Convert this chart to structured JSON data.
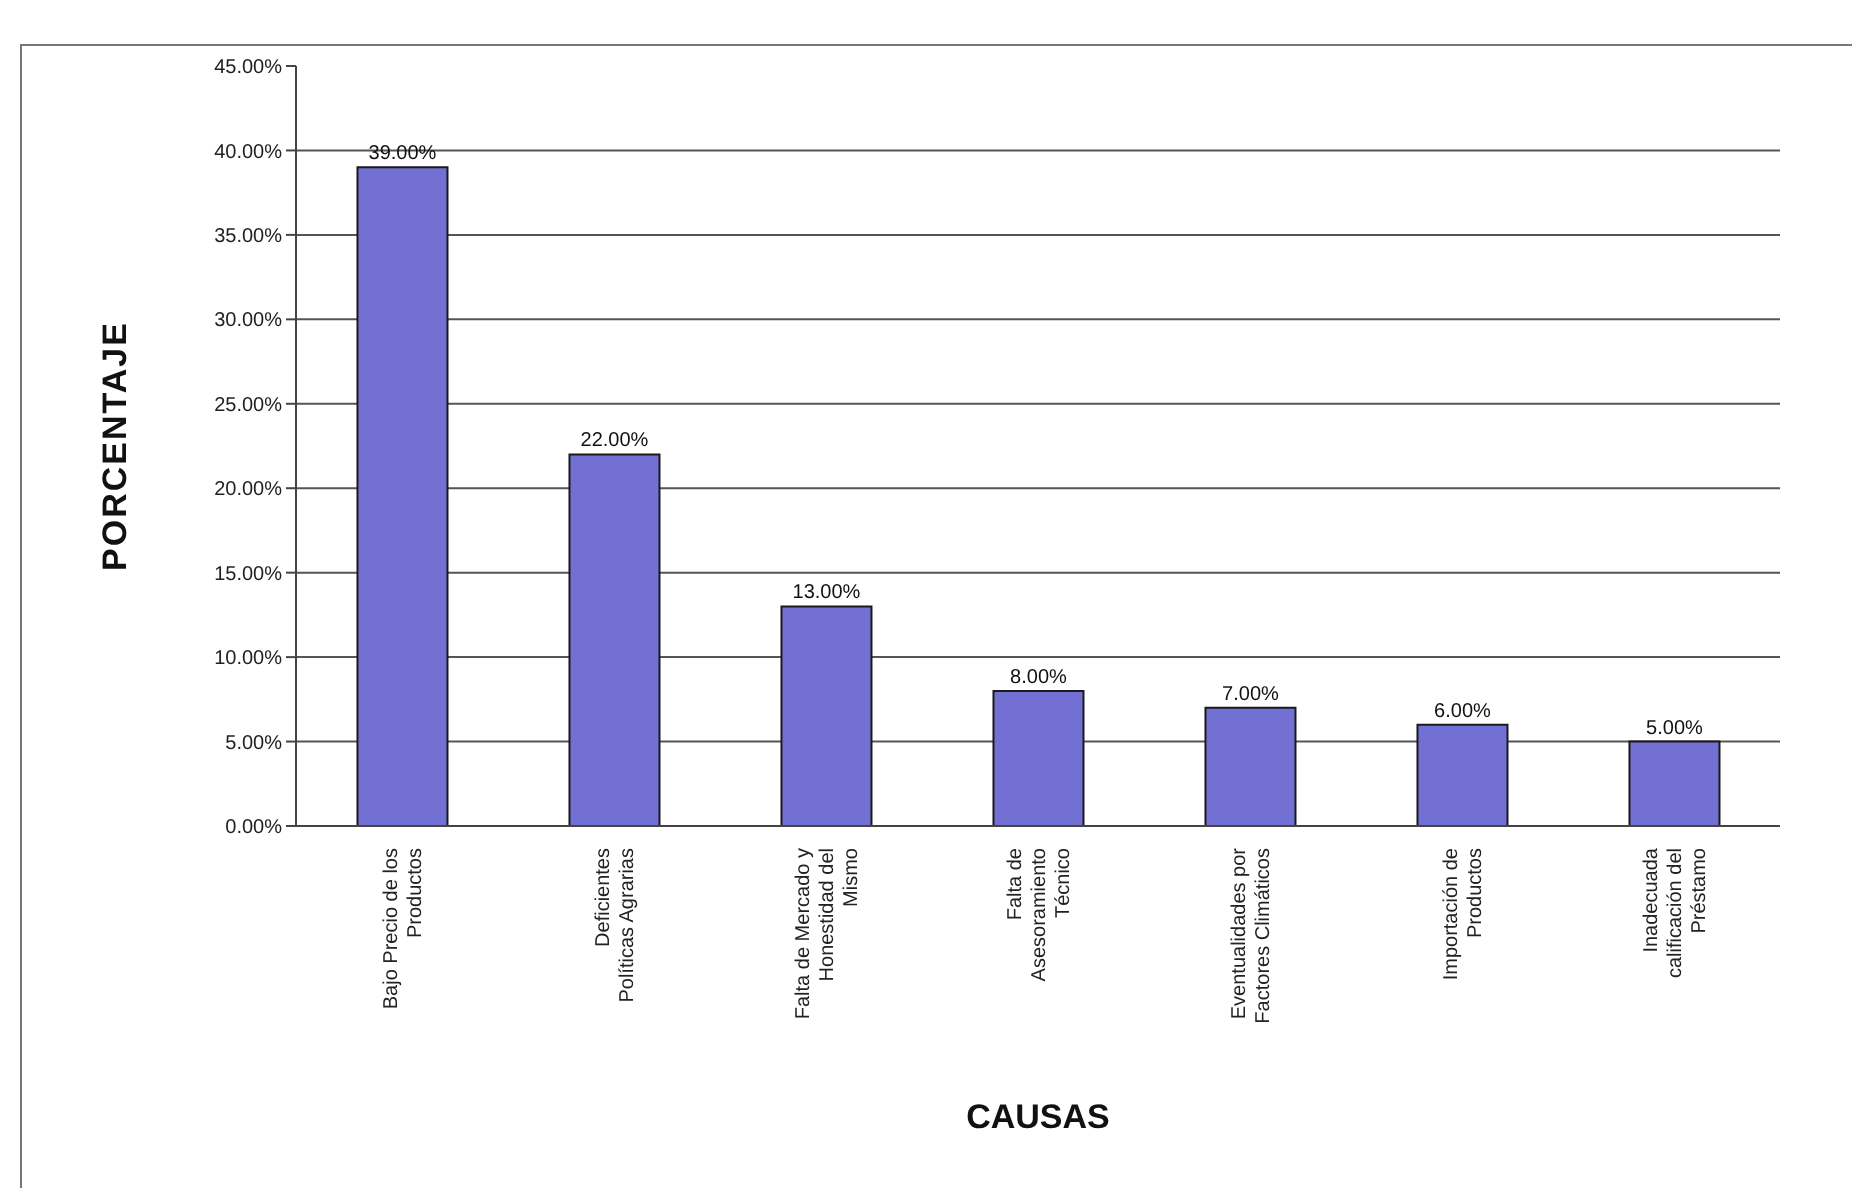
{
  "chart_data": {
    "type": "bar",
    "xlabel": "CAUSAS",
    "ylabel": "PORCENTAJE",
    "categories": [
      "Bajo Precio de los Productos",
      "Deficientes Políticas Agrarias",
      "Falta de Mercado y Honestidad del Mismo",
      "Falta de Asesoramiento Técnico",
      "Eventualidades por Factores Climáticos",
      "Importación de Productos",
      "Inadecuada calificación del Préstamo"
    ],
    "values": [
      39,
      22,
      13,
      8,
      7,
      6,
      5
    ],
    "color": "#7370d4",
    "ylim": [
      0,
      45
    ],
    "yticks": [
      {
        "value": 0,
        "label": "0.00%"
      },
      {
        "value": 5,
        "label": "5.00%"
      },
      {
        "value": 10,
        "label": "10.00%"
      },
      {
        "value": 15,
        "label": "15.00%"
      },
      {
        "value": 20,
        "label": "20.00%"
      },
      {
        "value": 25,
        "label": "25.00%"
      },
      {
        "value": 30,
        "label": "30.00%"
      },
      {
        "value": 35,
        "label": "35.00%"
      },
      {
        "value": 40,
        "label": "40.00%"
      },
      {
        "value": 45,
        "label": "45.00%"
      }
    ],
    "grid": "y",
    "value_labels": [
      "39.00%",
      "22.00%",
      "13.00%",
      "8.00%",
      "7.00%",
      "6.00%",
      "5.00%"
    ]
  }
}
